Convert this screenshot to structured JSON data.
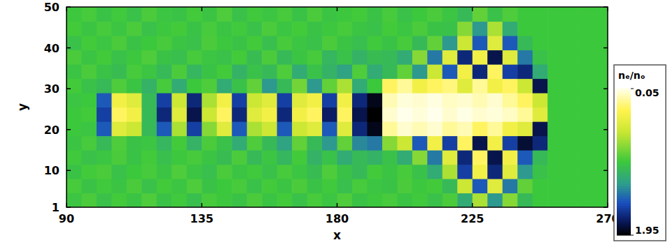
{
  "chart_data": {
    "type": "heatmap",
    "xlabel": "x",
    "ylabel": "y",
    "xlim": [
      90,
      270
    ],
    "ylim": [
      1,
      50
    ],
    "xticks": [
      90,
      135,
      180,
      225,
      270
    ],
    "yticks": [
      1,
      10,
      20,
      30,
      40,
      50
    ],
    "x": [
      92.5,
      97.5,
      102.5,
      107.5,
      112.5,
      117.5,
      122.5,
      127.5,
      132.5,
      137.5,
      142.5,
      147.5,
      152.5,
      157.5,
      162.5,
      167.5,
      172.5,
      177.5,
      182.5,
      187.5,
      192.5,
      197.5,
      202.5,
      207.5,
      212.5,
      217.5,
      222.5,
      227.5,
      232.5,
      237.5,
      242.5,
      247.5,
      252.5,
      257.5,
      262.5,
      267.5
    ],
    "y": [
      2.75,
      6.25,
      9.75,
      13.25,
      16.75,
      20.25,
      23.75,
      27.25,
      30.75,
      34.25,
      37.75,
      41.25,
      44.75,
      48.25
    ],
    "values": [
      [
        1.02,
        0.96,
        1.05,
        0.98,
        1.03,
        0.95,
        1.04,
        0.99,
        1.06,
        0.97,
        1.01,
        1.04,
        0.96,
        1.03,
        0.98,
        1.05,
        0.97,
        1.02,
        0.95,
        1.04,
        1.01,
        0.97,
        1.03,
        0.99,
        1.05,
        0.96,
        1.2,
        0.7,
        1.3,
        0.8,
        1.1,
        1.0,
        1.0,
        1.0,
        1.0,
        1.0
      ],
      [
        0.97,
        1.04,
        0.99,
        1.03,
        0.96,
        1.05,
        0.98,
        1.02,
        0.95,
        1.04,
        1.0,
        0.97,
        1.05,
        0.98,
        1.03,
        0.96,
        1.04,
        0.99,
        1.06,
        0.97,
        1.02,
        1.04,
        0.96,
        1.01,
        0.98,
        1.1,
        0.6,
        1.5,
        0.5,
        1.4,
        0.9,
        1.0,
        1.0,
        1.0,
        1.0,
        1.0
      ],
      [
        1.04,
        0.98,
        0.96,
        1.05,
        1.0,
        0.97,
        1.03,
        0.95,
        1.02,
        1.06,
        0.96,
        1.03,
        0.99,
        1.05,
        0.97,
        1.02,
        1.08,
        0.95,
        1.04,
        1.1,
        0.98,
        1.03,
        0.97,
        1.05,
        1.2,
        0.7,
        1.6,
        0.4,
        1.7,
        0.5,
        1.3,
        1.05,
        1.0,
        1.0,
        1.0,
        1.0
      ],
      [
        0.99,
        1.05,
        1.02,
        0.96,
        1.04,
        0.98,
        1.06,
        1.01,
        0.97,
        1.03,
        1.08,
        0.96,
        1.1,
        1.02,
        1.12,
        0.98,
        1.15,
        1.05,
        1.2,
        1.1,
        1.15,
        1.05,
        1.2,
        0.8,
        1.4,
        0.5,
        1.7,
        0.3,
        1.8,
        0.4,
        1.5,
        1.1,
        1.0,
        1.0,
        1.0,
        1.0
      ],
      [
        1.03,
        0.97,
        1.1,
        0.95,
        1.04,
        1.02,
        1.12,
        0.98,
        1.15,
        0.96,
        1.05,
        1.2,
        0.95,
        1.1,
        1.25,
        0.9,
        1.1,
        1.3,
        0.9,
        1.35,
        1.4,
        0.8,
        0.6,
        1.5,
        0.4,
        1.6,
        0.3,
        1.8,
        0.4,
        1.6,
        1.85,
        1.7,
        1.0,
        1.0,
        1.0,
        1.0
      ],
      [
        1.0,
        1.02,
        1.5,
        0.5,
        0.6,
        1.1,
        1.5,
        0.7,
        1.6,
        0.8,
        0.5,
        1.5,
        0.7,
        0.6,
        1.5,
        0.6,
        0.5,
        1.5,
        0.5,
        1.7,
        1.9,
        0.2,
        0.1,
        0.15,
        0.1,
        0.2,
        0.15,
        0.3,
        0.2,
        0.4,
        0.5,
        1.8,
        1.0,
        1.0,
        1.0,
        1.0
      ],
      [
        1.0,
        0.98,
        1.6,
        0.3,
        0.4,
        1.1,
        1.7,
        0.5,
        1.8,
        0.6,
        0.3,
        1.7,
        0.5,
        0.4,
        1.7,
        0.4,
        0.3,
        1.75,
        0.3,
        1.8,
        1.95,
        0.1,
        0.05,
        0.08,
        0.05,
        0.1,
        0.06,
        0.1,
        0.08,
        0.12,
        0.2,
        0.5,
        1.0,
        1.0,
        1.0,
        1.0
      ],
      [
        1.02,
        1.0,
        1.5,
        0.4,
        0.5,
        1.1,
        1.6,
        0.6,
        1.7,
        0.7,
        0.4,
        1.6,
        0.6,
        0.5,
        1.6,
        0.5,
        0.4,
        1.6,
        0.4,
        1.7,
        1.9,
        0.15,
        0.08,
        0.1,
        0.07,
        0.12,
        0.1,
        0.15,
        0.1,
        0.2,
        0.3,
        0.6,
        1.0,
        1.0,
        1.0,
        1.0
      ],
      [
        0.98,
        1.05,
        1.1,
        0.95,
        1.03,
        1.15,
        0.97,
        1.2,
        1.0,
        0.95,
        1.2,
        1.05,
        0.9,
        1.3,
        1.1,
        0.85,
        1.3,
        0.9,
        0.7,
        1.2,
        1.0,
        0.3,
        0.2,
        0.4,
        0.3,
        0.25,
        0.5,
        0.2,
        0.4,
        0.3,
        0.6,
        1.8,
        1.0,
        1.0,
        1.0,
        1.0
      ],
      [
        1.03,
        0.96,
        1.04,
        1.08,
        0.97,
        1.02,
        1.1,
        0.96,
        1.12,
        1.04,
        0.98,
        1.15,
        1.05,
        1.1,
        0.95,
        1.2,
        1.05,
        1.15,
        1.25,
        0.95,
        1.2,
        1.1,
        0.9,
        1.3,
        0.6,
        1.5,
        0.4,
        1.7,
        0.3,
        1.6,
        1.7,
        1.2,
        1.0,
        1.0,
        1.0,
        1.0
      ],
      [
        0.96,
        1.03,
        0.98,
        1.05,
        1.01,
        0.95,
        1.04,
        1.06,
        0.97,
        1.02,
        1.05,
        0.98,
        1.08,
        0.96,
        1.1,
        1.03,
        0.97,
        1.12,
        1.05,
        1.15,
        1.08,
        1.1,
        1.2,
        0.8,
        1.4,
        0.5,
        1.7,
        0.4,
        1.8,
        0.5,
        1.4,
        1.05,
        1.0,
        1.0,
        1.0,
        1.0
      ],
      [
        1.05,
        0.98,
        1.02,
        0.96,
        1.04,
        1.0,
        0.97,
        1.03,
        1.05,
        0.96,
        1.01,
        1.04,
        0.98,
        1.06,
        0.97,
        1.02,
        1.05,
        0.96,
        1.03,
        1.07,
        0.99,
        1.04,
        0.97,
        1.1,
        0.9,
        1.3,
        0.6,
        1.5,
        0.5,
        1.5,
        1.1,
        1.0,
        1.0,
        1.0,
        1.0,
        1.0
      ],
      [
        0.98,
        1.03,
        0.97,
        1.02,
        0.96,
        1.05,
        1.01,
        0.98,
        1.04,
        0.97,
        1.03,
        0.99,
        1.05,
        0.96,
        1.02,
        0.98,
        1.04,
        1.01,
        0.97,
        1.03,
        1.05,
        0.98,
        1.02,
        0.96,
        1.04,
        1.05,
        0.8,
        1.3,
        0.7,
        1.2,
        1.0,
        1.0,
        1.0,
        1.0,
        1.0,
        1.0
      ],
      [
        1.01,
        0.97,
        1.04,
        0.99,
        1.05,
        0.96,
        1.02,
        1.04,
        0.98,
        1.03,
        0.95,
        1.05,
        0.99,
        1.02,
        0.97,
        1.04,
        0.96,
        1.03,
        1.01,
        0.98,
        1.04,
        0.97,
        1.05,
        1.0,
        0.96,
        1.02,
        1.1,
        0.9,
        1.05,
        0.95,
        1.0,
        1.0,
        1.0,
        1.0,
        1.0,
        1.0
      ]
    ],
    "colorbar_title": "nₑ/nₒ",
    "colorbar_range": [
      0.05,
      1.95
    ],
    "colorbar_ticks": [
      0.05,
      1.95
    ]
  }
}
